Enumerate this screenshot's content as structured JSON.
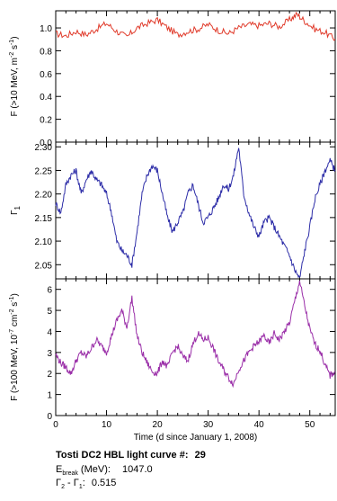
{
  "chart_data": [
    {
      "type": "line",
      "panel": "top",
      "ylabel_parts": [
        "F (>10 MeV, m",
        "-2",
        " s",
        "-1",
        ")"
      ],
      "ylim": [
        0.0,
        1.15
      ],
      "yticks": [
        "0.0",
        "0.2",
        "0.4",
        "0.6",
        "0.8",
        "1.0"
      ],
      "xlim": [
        0,
        55
      ],
      "color": "#e03a2a",
      "x": [
        0,
        2,
        4,
        6,
        8,
        10,
        12,
        14,
        16,
        18,
        20,
        22,
        24,
        26,
        28,
        30,
        32,
        34,
        36,
        38,
        40,
        42,
        44,
        46,
        47.5,
        49,
        51,
        53,
        55
      ],
      "y": [
        0.95,
        0.93,
        0.97,
        0.94,
        0.99,
        1.04,
        0.97,
        0.92,
        1.0,
        1.04,
        1.07,
        1.0,
        0.94,
        0.97,
        0.99,
        1.03,
        0.98,
        0.95,
        1.0,
        1.03,
        1.02,
        1.04,
        1.01,
        1.07,
        1.12,
        1.06,
        0.99,
        0.96,
        0.9
      ]
    },
    {
      "type": "line",
      "panel": "middle",
      "ylabel_parts": [
        "Γ",
        "1"
      ],
      "ylim": [
        2.02,
        2.31
      ],
      "yticks": [
        "2.05",
        "2.10",
        "2.15",
        "2.20",
        "2.25",
        "2.30"
      ],
      "xlim": [
        0,
        55
      ],
      "color": "#2e2ea8",
      "x": [
        0,
        1,
        2,
        3,
        4,
        5,
        6,
        7,
        8,
        9,
        10,
        11,
        12,
        13,
        14,
        15,
        16,
        17,
        18,
        19,
        20,
        21,
        22,
        23,
        24,
        25,
        26,
        27,
        28,
        29,
        30,
        31,
        32,
        33,
        34,
        35,
        36,
        37,
        38,
        39,
        40,
        41,
        42,
        43,
        44,
        45,
        46,
        47,
        48,
        49,
        50,
        51,
        52,
        53,
        54,
        55
      ],
      "y": [
        2.18,
        2.16,
        2.22,
        2.24,
        2.25,
        2.2,
        2.23,
        2.25,
        2.23,
        2.22,
        2.2,
        2.16,
        2.1,
        2.08,
        2.07,
        2.05,
        2.12,
        2.2,
        2.24,
        2.26,
        2.25,
        2.2,
        2.15,
        2.12,
        2.14,
        2.16,
        2.2,
        2.22,
        2.18,
        2.14,
        2.15,
        2.17,
        2.19,
        2.22,
        2.21,
        2.24,
        2.3,
        2.2,
        2.16,
        2.13,
        2.11,
        2.14,
        2.15,
        2.13,
        2.11,
        2.09,
        2.07,
        2.04,
        2.02,
        2.08,
        2.13,
        2.19,
        2.22,
        2.25,
        2.27,
        2.25
      ]
    },
    {
      "type": "line",
      "panel": "bottom",
      "ylabel_parts": [
        "F (>100 MeV, 10",
        "-7",
        " cm",
        "-2",
        " s",
        "-1",
        ")"
      ],
      "ylim": [
        0,
        6.5
      ],
      "yticks": [
        "0",
        "1",
        "2",
        "3",
        "4",
        "5",
        "6"
      ],
      "xlim": [
        0,
        55
      ],
      "xticks": [
        "0",
        "10",
        "20",
        "30",
        "40",
        "50"
      ],
      "xlabel": "Time (d since January 1, 2008)",
      "color": "#9a2ea8",
      "x": [
        0,
        1,
        2,
        3,
        4,
        5,
        6,
        7,
        8,
        9,
        10,
        11,
        12,
        13,
        14,
        15,
        16,
        17,
        18,
        19,
        20,
        21,
        22,
        23,
        24,
        25,
        26,
        27,
        28,
        29,
        30,
        31,
        32,
        33,
        34,
        35,
        36,
        37,
        38,
        39,
        40,
        41,
        42,
        43,
        44,
        45,
        46,
        47,
        48,
        49,
        50,
        51,
        52,
        53,
        54,
        55
      ],
      "y": [
        2.9,
        2.5,
        2.3,
        2.0,
        2.6,
        3.0,
        2.8,
        3.2,
        3.6,
        3.3,
        3.0,
        3.8,
        4.5,
        5.0,
        4.2,
        5.6,
        3.8,
        3.0,
        2.5,
        2.1,
        2.0,
        2.6,
        2.3,
        3.0,
        3.3,
        2.8,
        2.6,
        3.4,
        3.9,
        3.6,
        3.7,
        3.2,
        2.6,
        2.2,
        1.8,
        1.5,
        2.2,
        2.6,
        3.0,
        3.3,
        3.5,
        3.8,
        3.4,
        3.9,
        3.6,
        4.0,
        4.4,
        5.4,
        6.4,
        5.2,
        4.1,
        3.4,
        3.1,
        2.4,
        1.9,
        2.1
      ]
    }
  ],
  "caption": {
    "title_label": "Tosti DC2 HBL light curve #:",
    "title_value": "29",
    "ebreak_label_main": "E",
    "ebreak_label_sub": "break",
    "ebreak_label_rest": " (MeV):",
    "ebreak_value": "1047.0",
    "gamma_label_a": "Γ",
    "gamma_label_a_sub": "2",
    "gamma_label_mid": " - Γ",
    "gamma_label_b_sub": "1",
    "gamma_label_rest": ":",
    "gamma_value": "0.515"
  }
}
